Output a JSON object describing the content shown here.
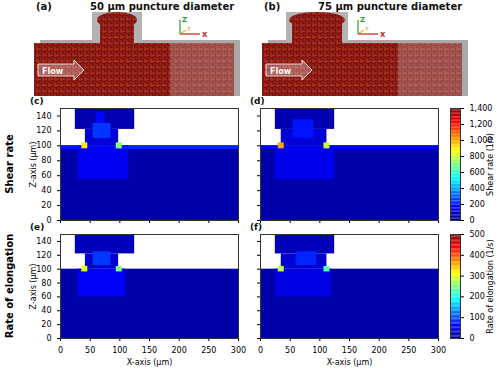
{
  "renderings": [
    {
      "label": "(a)",
      "title": "50 μm puncture diameter",
      "flow_label": "Flow",
      "axis_labels": [
        "Z",
        "Y",
        "X"
      ]
    },
    {
      "label": "(b)",
      "title": "75 μm puncture diameter",
      "flow_label": "Flow",
      "axis_labels": [
        "Z",
        "Y",
        "X"
      ]
    }
  ],
  "chart_data": [
    {
      "type": "heatmap",
      "row_label": "Shear rate",
      "xlim": [
        0,
        300
      ],
      "xticks": [
        0,
        50,
        100,
        150,
        200,
        250,
        300
      ],
      "ylim": [
        0,
        150
      ],
      "yticks": [
        0,
        20,
        40,
        60,
        80,
        100,
        120,
        140
      ],
      "y_label": "Z-axis (μm)",
      "colorbar": {
        "label": "Shear rate (1/s)",
        "range": [
          0,
          1400
        ],
        "ticks": [
          0,
          200,
          400,
          600,
          800,
          1000,
          1200,
          1400
        ]
      },
      "panels": [
        {
          "label": "(c)",
          "tick_labels": "y",
          "cells": [
            [
              0,
              300,
              0,
              100,
              60
            ],
            [
              42,
              98,
              100,
              122,
              120
            ],
            [
              25,
              125,
              122,
              150,
              70
            ],
            [
              30,
              115,
              55,
              100,
              160
            ],
            [
              100,
              300,
              95,
              100,
              220
            ],
            [
              0,
              36,
              95,
              100,
              200
            ],
            [
              36,
              46,
              96,
              104,
              900
            ],
            [
              94,
              104,
              96,
              104,
              700
            ],
            [
              55,
              85,
              110,
              130,
              250
            ],
            [
              60,
              75,
              130,
              145,
              180
            ]
          ]
        },
        {
          "label": "(d)",
          "tick_labels": false,
          "cells": [
            [
              0,
              300,
              0,
              100,
              60
            ],
            [
              35,
              112,
              100,
              122,
              120
            ],
            [
              25,
              125,
              122,
              150,
              70
            ],
            [
              25,
              125,
              55,
              100,
              150
            ],
            [
              110,
              300,
              95,
              100,
              160
            ],
            [
              0,
              30,
              95,
              100,
              180
            ],
            [
              30,
              40,
              96,
              104,
              1000
            ],
            [
              107,
              117,
              96,
              104,
              800
            ],
            [
              55,
              90,
              110,
              135,
              200
            ]
          ]
        }
      ]
    },
    {
      "type": "heatmap",
      "row_label": "Rate of elongation",
      "xlim": [
        0,
        300
      ],
      "xticks": [
        0,
        50,
        100,
        150,
        200,
        250,
        300
      ],
      "ylim": [
        0,
        150
      ],
      "yticks": [
        0,
        20,
        40,
        60,
        80,
        100,
        120,
        140
      ],
      "x_label": "X-axis (μm)",
      "y_label": "Z-axis (μm)",
      "colorbar": {
        "label": "Rate of elongation (1/s)",
        "range": [
          0,
          500
        ],
        "ticks": [
          0,
          100,
          200,
          300,
          400,
          500
        ]
      },
      "panels": [
        {
          "label": "(e)",
          "tick_labels": true,
          "cells": [
            [
              0,
              300,
              0,
              100,
              20
            ],
            [
              42,
              98,
              100,
              122,
              40
            ],
            [
              25,
              125,
              122,
              150,
              30
            ],
            [
              30,
              110,
              60,
              100,
              60
            ],
            [
              36,
              46,
              96,
              104,
              300
            ],
            [
              94,
              104,
              96,
              104,
              250
            ],
            [
              55,
              85,
              105,
              125,
              90
            ]
          ]
        },
        {
          "label": "(f)",
          "tick_labels": "x",
          "cells": [
            [
              0,
              300,
              0,
              100,
              20
            ],
            [
              35,
              112,
              100,
              122,
              40
            ],
            [
              25,
              125,
              122,
              150,
              30
            ],
            [
              25,
              120,
              60,
              100,
              50
            ],
            [
              30,
              40,
              96,
              104,
              280
            ],
            [
              107,
              117,
              96,
              104,
              230
            ],
            [
              60,
              95,
              105,
              125,
              80
            ]
          ]
        }
      ]
    }
  ]
}
